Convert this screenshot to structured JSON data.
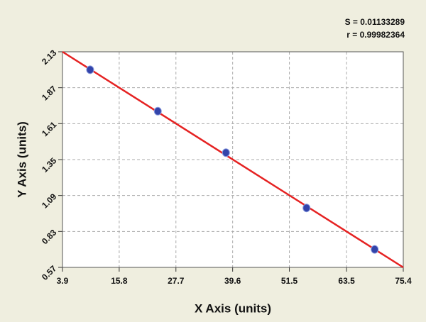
{
  "chart_data": {
    "type": "scatter",
    "annotations": [
      "S = 0.01133289",
      "r = 0.99982364"
    ],
    "xlabel": "X Axis (units)",
    "ylabel": "Y Axis (units)",
    "x": [
      9.7,
      23.9,
      38.2,
      55.1,
      69.4
    ],
    "y": [
      2.0,
      1.7,
      1.4,
      1.0,
      0.7
    ],
    "color": "#3344aa",
    "fit": {
      "x": [
        3.9,
        75.4
      ],
      "y": [
        2.13,
        0.57
      ],
      "color": "#e52222"
    },
    "xlim": [
      3.9,
      75.4
    ],
    "xticks": [
      3.9,
      15.8,
      27.7,
      39.6,
      51.5,
      63.5,
      75.4
    ],
    "ylim": [
      0.57,
      2.13
    ],
    "yticks": [
      0.57,
      0.83,
      1.09,
      1.35,
      1.61,
      1.87,
      2.13
    ],
    "grid": true
  }
}
